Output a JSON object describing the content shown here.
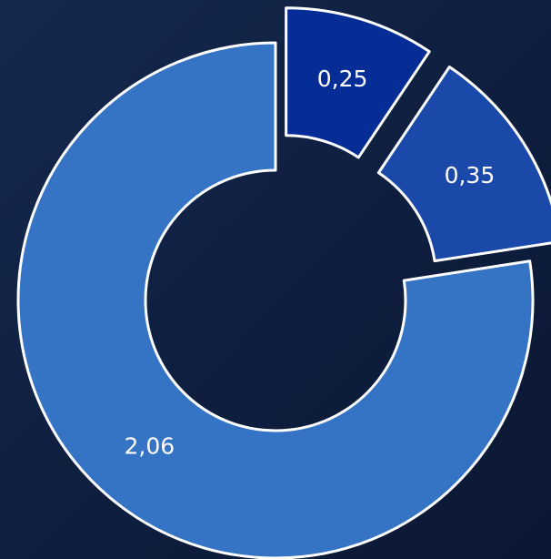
{
  "chart_data": {
    "type": "pie",
    "donut": true,
    "values": [
      0.25,
      0.35,
      2.06
    ],
    "value_labels": [
      "0,25",
      "0,35",
      "2,06"
    ],
    "colors": [
      "#062d95",
      "#1a49aa",
      "#3573c4"
    ],
    "exploded": [
      true,
      true,
      false
    ]
  }
}
